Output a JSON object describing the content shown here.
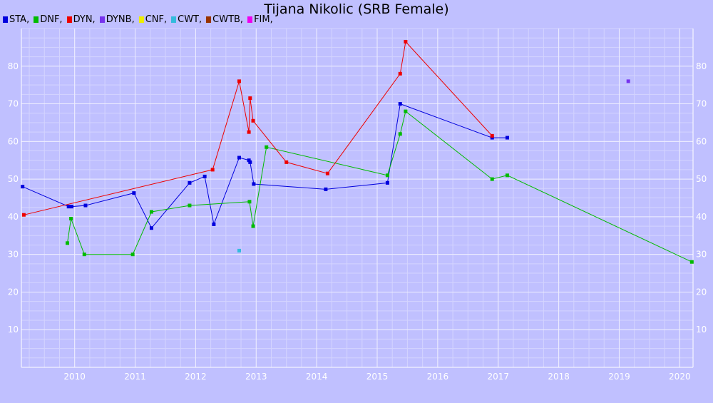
{
  "chart_data": {
    "type": "line",
    "title": "Tijana Nikolic (SRB Female)",
    "xlabel": "",
    "ylabel": "",
    "xlim": [
      2009.12,
      2020.22
    ],
    "ylim": [
      0,
      90
    ],
    "x_ticks": [
      "2010",
      "2011",
      "2012",
      "2013",
      "2014",
      "2015",
      "2016",
      "2017",
      "2018",
      "2019",
      "2020"
    ],
    "y_ticks": [
      "10",
      "20",
      "30",
      "40",
      "50",
      "60",
      "70",
      "80"
    ],
    "grid": true,
    "legend_position": "top-left",
    "legend": [
      {
        "label": "STA,",
        "color": "#0000dd"
      },
      {
        "label": "DNF,",
        "color": "#00bb00"
      },
      {
        "label": "DYN,",
        "color": "#ee0000"
      },
      {
        "label": "DYNB,",
        "color": "#7733ee"
      },
      {
        "label": "CNF,",
        "color": "#eeee00"
      },
      {
        "label": "CWT,",
        "color": "#33bbdd"
      },
      {
        "label": "CWTB,",
        "color": "#993300"
      },
      {
        "label": "FIM,",
        "color": "#ee00ee"
      }
    ],
    "series": [
      {
        "code": "STA",
        "color": "#0000dd",
        "connected": true,
        "points": [
          [
            2009.14,
            48
          ],
          [
            2009.9,
            42.7
          ],
          [
            2009.95,
            42.7
          ],
          [
            2010.18,
            43
          ],
          [
            2010.98,
            46.3
          ],
          [
            2011.27,
            37
          ],
          [
            2011.9,
            49
          ],
          [
            2012.15,
            50.7
          ],
          [
            2012.3,
            38
          ],
          [
            2012.72,
            55.7
          ],
          [
            2012.88,
            55
          ],
          [
            2012.9,
            54.5
          ],
          [
            2012.96,
            48.7
          ],
          [
            2014.15,
            47.3
          ],
          [
            2015.17,
            49
          ],
          [
            2015.38,
            70
          ],
          [
            2016.9,
            61
          ],
          [
            2017.15,
            61
          ]
        ]
      },
      {
        "code": "DNF",
        "color": "#00bb00",
        "connected": true,
        "points": [
          [
            2009.88,
            33
          ],
          [
            2009.94,
            39.5
          ],
          [
            2010.16,
            30
          ],
          [
            2010.96,
            30
          ],
          [
            2011.27,
            41.3
          ],
          [
            2011.9,
            43
          ],
          [
            2012.89,
            44
          ],
          [
            2012.95,
            37.5
          ],
          [
            2013.17,
            58.5
          ],
          [
            2015.17,
            51
          ],
          [
            2015.38,
            62
          ],
          [
            2015.47,
            68
          ],
          [
            2016.9,
            50
          ],
          [
            2017.15,
            51
          ],
          [
            2020.2,
            28
          ]
        ]
      },
      {
        "code": "DYN",
        "color": "#ee0000",
        "connected": true,
        "points": [
          [
            2009.16,
            40.5
          ],
          [
            2012.28,
            52.5
          ],
          [
            2012.72,
            76
          ],
          [
            2012.88,
            62.5
          ],
          [
            2012.9,
            71.5
          ],
          [
            2012.95,
            65.5
          ],
          [
            2013.5,
            54.5
          ],
          [
            2014.18,
            51.5
          ],
          [
            2015.38,
            78
          ],
          [
            2015.47,
            86.5
          ],
          [
            2016.9,
            61.5
          ]
        ]
      },
      {
        "code": "DYNB",
        "color": "#7733ee",
        "connected": false,
        "points": [
          [
            2019.15,
            76
          ]
        ]
      },
      {
        "code": "CWT",
        "color": "#33bbdd",
        "connected": false,
        "points": [
          [
            2012.72,
            31
          ]
        ]
      }
    ]
  }
}
